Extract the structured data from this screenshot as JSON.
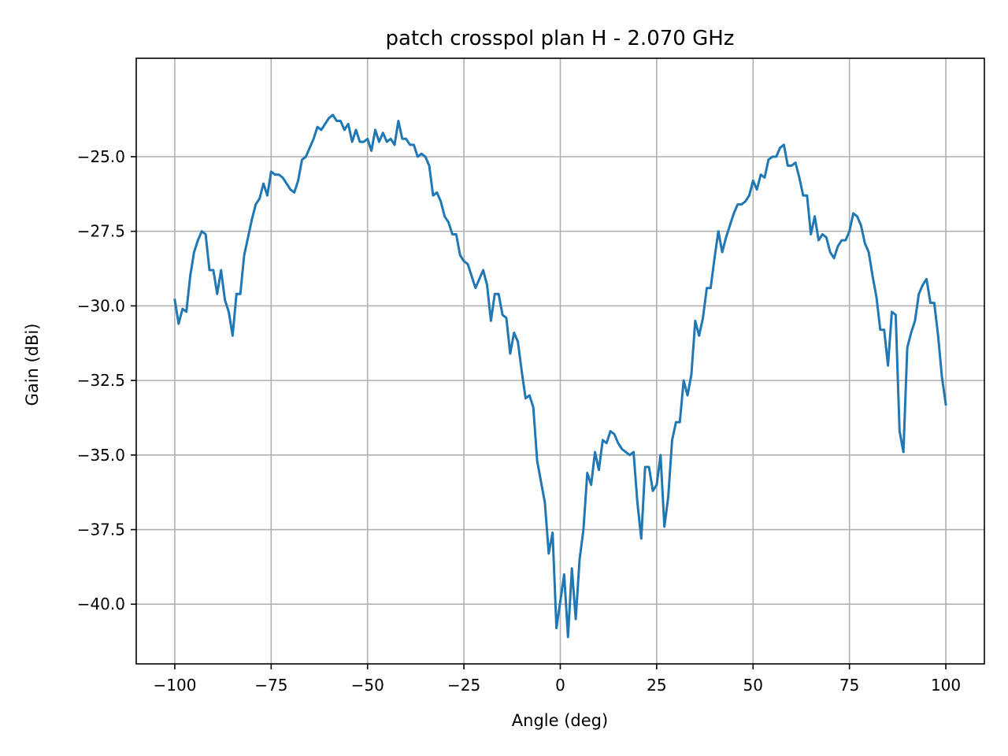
{
  "chart_data": {
    "type": "line",
    "title": "patch crosspol plan H - 2.070 GHz",
    "xlabel": "Angle (deg)",
    "ylabel": "Gain (dBi)",
    "xlim": [
      -110,
      110
    ],
    "ylim": [
      -42,
      -21.7
    ],
    "xticks": [
      -100,
      -75,
      -50,
      -25,
      0,
      25,
      50,
      75,
      100
    ],
    "xtick_labels": [
      "−100",
      "−75",
      "−50",
      "−25",
      "0",
      "25",
      "50",
      "75",
      "100"
    ],
    "yticks": [
      -40,
      -37.5,
      -35,
      -32.5,
      -30,
      -27.5,
      -25
    ],
    "ytick_labels": [
      "−40.0",
      "−37.5",
      "−35.0",
      "−32.5",
      "−30.0",
      "−27.5",
      "−25.0"
    ],
    "grid": true,
    "line_color": "#1f77b4",
    "series": [
      {
        "x": [
          -100,
          -99,
          -98,
          -97,
          -96,
          -95,
          -94,
          -93,
          -92,
          -91,
          -90,
          -89,
          -88,
          -87,
          -86,
          -85,
          -84,
          -83,
          -82,
          -81,
          -80,
          -79,
          -78,
          -77,
          -76,
          -75,
          -74,
          -73,
          -72,
          -71,
          -70,
          -69,
          -68,
          -67,
          -66,
          -65,
          -64,
          -63,
          -62,
          -61,
          -60,
          -59,
          -58,
          -57,
          -56,
          -55,
          -54,
          -53,
          -52,
          -51,
          -50,
          -49,
          -48,
          -47,
          -46,
          -45,
          -44,
          -43,
          -42,
          -41,
          -40,
          -39,
          -38,
          -37,
          -36,
          -35,
          -34,
          -33,
          -32,
          -31,
          -30,
          -29,
          -28,
          -27,
          -26,
          -25,
          -24,
          -23,
          -22,
          -21,
          -20,
          -19,
          -18,
          -17,
          -16,
          -15,
          -14,
          -13,
          -12,
          -11,
          -10,
          -9,
          -8,
          -7,
          -6,
          -5,
          -4,
          -3,
          -2,
          -1,
          0,
          1,
          2,
          3,
          4,
          5,
          6,
          7,
          8,
          9,
          10,
          11,
          12,
          13,
          14,
          15,
          16,
          17,
          18,
          19,
          20,
          21,
          22,
          23,
          24,
          25,
          26,
          27,
          28,
          29,
          30,
          31,
          32,
          33,
          34,
          35,
          36,
          37,
          38,
          39,
          40,
          41,
          42,
          43,
          44,
          45,
          46,
          47,
          48,
          49,
          50,
          51,
          52,
          53,
          54,
          55,
          56,
          57,
          58,
          59,
          60,
          61,
          62,
          63,
          64,
          65,
          66,
          67,
          68,
          69,
          70,
          71,
          72,
          73,
          74,
          75,
          76,
          77,
          78,
          79,
          80,
          81,
          82,
          83,
          84,
          85,
          86,
          87,
          88,
          89,
          90,
          91,
          92,
          93,
          94,
          95,
          96,
          97,
          98,
          99,
          100
        ],
        "values": [
          -29.8,
          -30.6,
          -30.1,
          -30.2,
          -29.0,
          -28.2,
          -27.8,
          -27.5,
          -27.6,
          -28.8,
          -28.8,
          -29.6,
          -28.8,
          -29.8,
          -30.2,
          -31.0,
          -29.6,
          -29.6,
          -28.3,
          -27.7,
          -27.1,
          -26.6,
          -26.4,
          -25.9,
          -26.3,
          -25.5,
          -25.6,
          -25.6,
          -25.7,
          -25.9,
          -26.1,
          -26.2,
          -25.8,
          -25.1,
          -25.0,
          -24.7,
          -24.4,
          -24.0,
          -24.1,
          -23.9,
          -23.7,
          -23.6,
          -23.8,
          -23.8,
          -24.1,
          -23.9,
          -24.5,
          -24.1,
          -24.5,
          -24.5,
          -24.4,
          -24.8,
          -24.1,
          -24.5,
          -24.2,
          -24.5,
          -24.4,
          -24.6,
          -23.8,
          -24.4,
          -24.4,
          -24.6,
          -24.6,
          -25.0,
          -24.9,
          -25.0,
          -25.3,
          -26.3,
          -26.2,
          -26.5,
          -27.0,
          -27.2,
          -27.6,
          -27.6,
          -28.3,
          -28.5,
          -28.6,
          -29.0,
          -29.4,
          -29.1,
          -28.8,
          -29.3,
          -30.5,
          -29.6,
          -29.6,
          -30.3,
          -30.4,
          -31.6,
          -30.9,
          -31.2,
          -32.2,
          -33.1,
          -33.0,
          -33.4,
          -35.2,
          -35.9,
          -36.6,
          -38.3,
          -37.6,
          -40.8,
          -39.9,
          -39.0,
          -41.1,
          -38.8,
          -40.5,
          -38.5,
          -37.5,
          -35.6,
          -36.0,
          -34.9,
          -35.5,
          -34.5,
          -34.6,
          -34.2,
          -34.3,
          -34.6,
          -34.8,
          -34.9,
          -35.0,
          -34.9,
          -36.6,
          -37.8,
          -35.4,
          -35.4,
          -36.2,
          -36.0,
          -35.0,
          -37.4,
          -36.4,
          -34.5,
          -33.9,
          -33.9,
          -32.5,
          -33.0,
          -32.3,
          -30.5,
          -31.0,
          -30.4,
          -29.4,
          -29.4,
          -28.4,
          -27.5,
          -28.2,
          -27.7,
          -27.3,
          -26.9,
          -26.6,
          -26.6,
          -26.5,
          -26.3,
          -25.8,
          -26.1,
          -25.6,
          -25.7,
          -25.1,
          -25.0,
          -25.0,
          -24.7,
          -24.6,
          -25.3,
          -25.3,
          -25.2,
          -25.7,
          -26.3,
          -26.3,
          -27.6,
          -27.0,
          -27.8,
          -27.6,
          -27.7,
          -28.2,
          -28.4,
          -28.0,
          -27.8,
          -27.8,
          -27.5,
          -26.9,
          -27.0,
          -27.3,
          -27.9,
          -28.2,
          -29.0,
          -29.7,
          -30.8,
          -30.8,
          -32.0,
          -30.2,
          -30.3,
          -34.2,
          -34.9,
          -31.4,
          -30.9,
          -30.5,
          -29.6,
          -29.3,
          -29.1,
          -29.9,
          -29.9,
          -31.0,
          -32.4,
          -33.3
        ]
      }
    ]
  }
}
